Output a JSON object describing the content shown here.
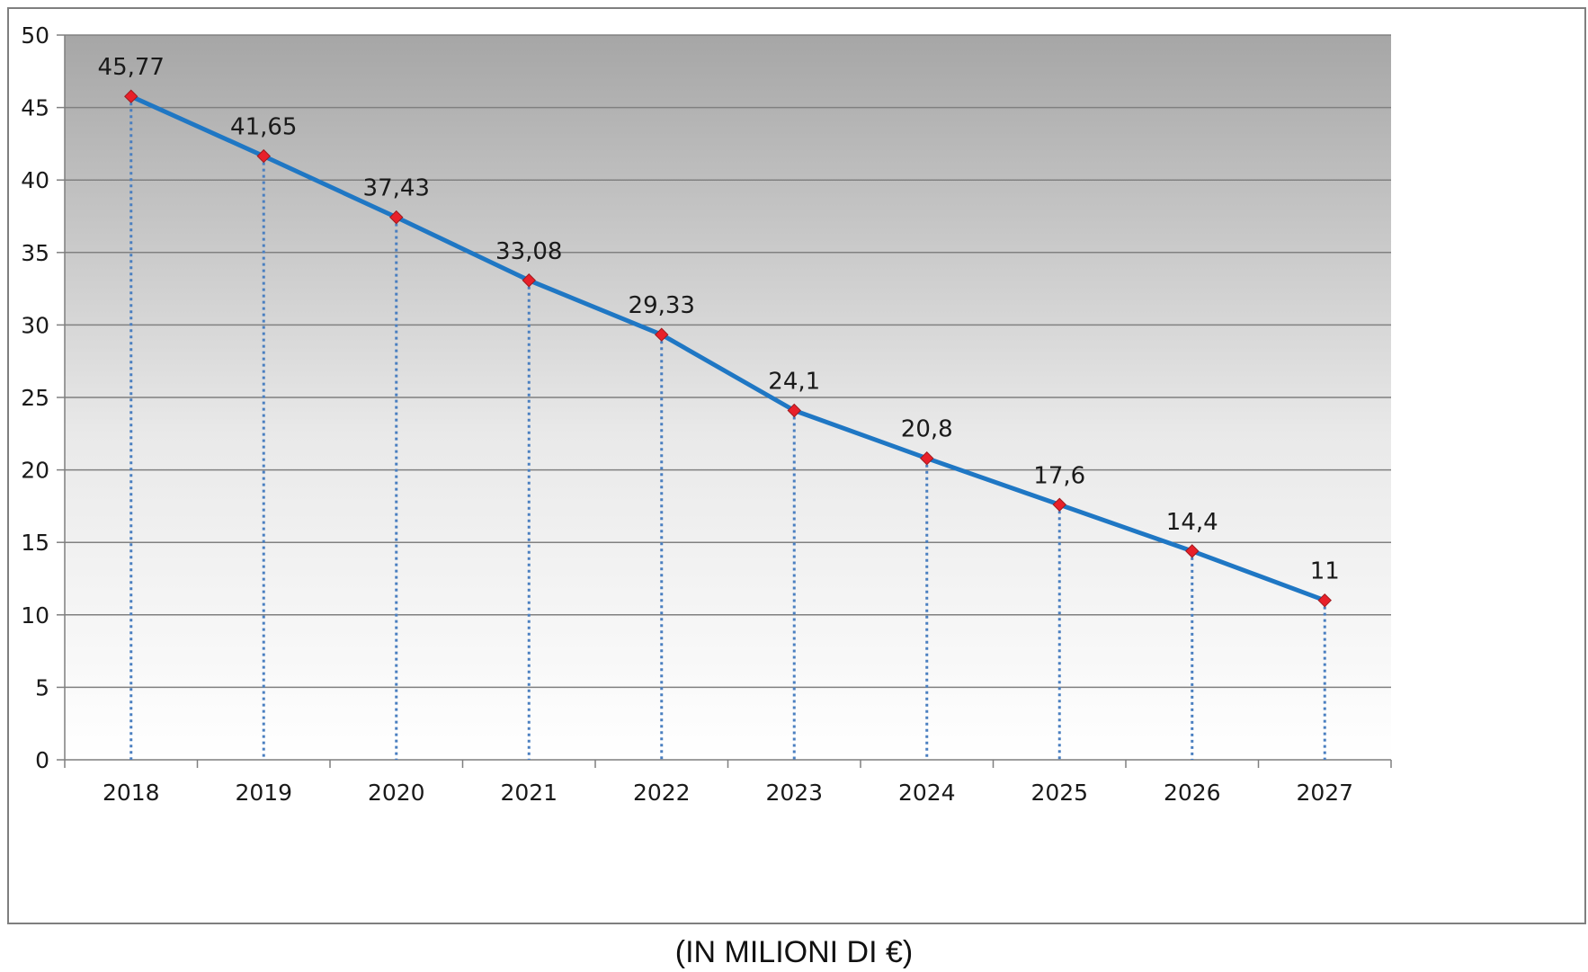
{
  "chart_data": {
    "type": "line",
    "categories": [
      "2018",
      "2019",
      "2020",
      "2021",
      "2022",
      "2023",
      "2024",
      "2025",
      "2026",
      "2027"
    ],
    "series": [
      {
        "values": [
          45.77,
          41.65,
          37.43,
          33.08,
          29.33,
          24.1,
          20.8,
          17.6,
          14.4,
          11
        ],
        "data_labels": [
          "45,77",
          "41,65",
          "37,43",
          "33,08",
          "29,33",
          "24,1",
          "20,8",
          "17,6",
          "14,4",
          "11"
        ]
      }
    ],
    "ylim": [
      0,
      50
    ],
    "y_ticks": [
      "0",
      "5",
      "10",
      "15",
      "20",
      "25",
      "30",
      "35",
      "40",
      "45",
      "50"
    ],
    "grid": true,
    "drop_lines": true,
    "marker": "diamond",
    "colors": {
      "line": "#1f77c4",
      "marker": "#e8202a",
      "drop_line": "#4a7fc0",
      "grid": "#808080",
      "plot_top": "#a6a6a6",
      "plot_bottom": "#ffffff"
    }
  },
  "caption": "(IN MILIONI DI €)"
}
